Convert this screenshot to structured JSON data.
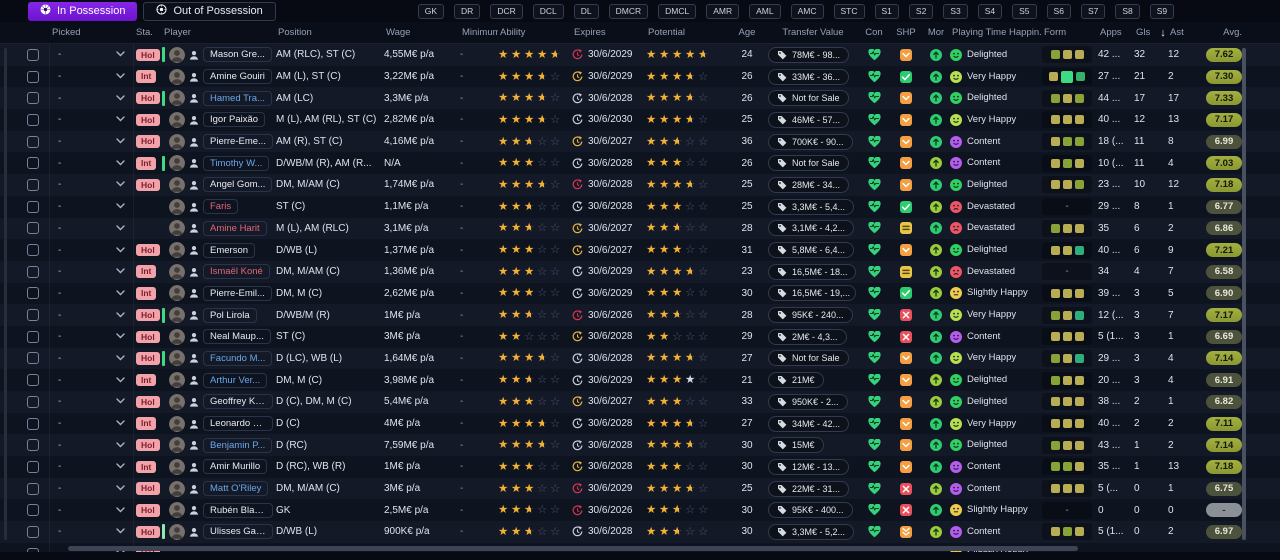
{
  "tabs": [
    {
      "label": "In Possession",
      "active": true
    },
    {
      "label": "Out of Possession",
      "active": false
    }
  ],
  "position_filters": [
    "GK",
    "DR",
    "DCR",
    "DCL",
    "DL",
    "DMCR",
    "DMCL",
    "AMR",
    "AML",
    "AMC",
    "STC",
    "S1",
    "S2",
    "S3",
    "S4",
    "S5",
    "S6",
    "S7",
    "S8",
    "S9"
  ],
  "columns": [
    "",
    "Picked",
    "Sta.",
    "Player",
    "Position",
    "Wage",
    "Minimum...",
    "Ability",
    "Expires",
    "Potential",
    "Age",
    "Transfer Value",
    "Con",
    "SHP",
    "Mor",
    "Playing Time Happin...",
    "Form",
    "Apps",
    "Gls",
    "Ast",
    "Avg."
  ],
  "sort": {
    "column": "Gls",
    "direction": "desc"
  },
  "colors": {
    "accent_purple": "#7a1fe0",
    "badge_pink": "#f2a3aa",
    "star_gold": "#f2b135",
    "heart_green": "#34d27b",
    "clock_red": "#d7344e",
    "clock_yellow": "#e3b341",
    "clock_white": "#c8cdd9",
    "mood_delighted": "#2fd160",
    "mood_veryhappy": "#b6e14e",
    "mood_content": "#b65cf0",
    "mood_devastated": "#ee5566",
    "mood_slightly": "#eecb4e"
  },
  "rows": [
    {
      "picked": "-",
      "sta": "Hol",
      "bar": "green",
      "name": "Mason Gre...",
      "name_color": "white",
      "position": "AM (RLC), ST (C)",
      "wage": "4,55M€ p/a",
      "min_fee": "-",
      "ability": 4.5,
      "expires": "30/6/2029",
      "expires_color": "red",
      "potential": 4.5,
      "age": "24",
      "value": "78M€ - 98...",
      "shp": "down",
      "mor": "green",
      "happiness": "Delighted",
      "mood": "delighted",
      "form": [
        "olive",
        "khaki",
        "khaki"
      ],
      "apps": "42 ...",
      "gls": "32",
      "ast": "12",
      "avg": "7.62"
    },
    {
      "picked": "-",
      "sta": "Int",
      "bar": null,
      "name": "Amine Gouiri",
      "name_color": "white",
      "position": "AM (L), ST (C)",
      "wage": "3,22M€ p/a",
      "min_fee": "-",
      "ability": 3.5,
      "expires": "30/6/2029",
      "expires_color": "yellow",
      "potential": 3.5,
      "age": "26",
      "value": "33M€ - 36...",
      "shp": "check",
      "mor": "green",
      "happiness": "Very Happy",
      "mood": "veryhappy",
      "form": [
        "khaki",
        "bright",
        "green"
      ],
      "form_big": 1,
      "apps": "27 ...",
      "gls": "21",
      "ast": "2",
      "avg": "7.30"
    },
    {
      "picked": "-",
      "sta": "Hol",
      "bar": "green",
      "name": "Hamed Tra...",
      "name_color": "blue",
      "position": "AM (LC)",
      "wage": "3,3M€ p/a",
      "min_fee": "-",
      "ability": 3.5,
      "expires": "30/6/2028",
      "expires_color": "white",
      "potential": 3.5,
      "age": "26",
      "value": "Not for Sale",
      "shp": "down",
      "mor": "green",
      "happiness": "Delighted",
      "mood": "delighted",
      "form": [
        "olive",
        "khaki",
        "olive"
      ],
      "apps": "44 ...",
      "gls": "17",
      "ast": "17",
      "avg": "7.33"
    },
    {
      "picked": "-",
      "sta": "Hol",
      "bar": null,
      "name": "Igor Paixão",
      "name_color": "white",
      "position": "M (L), AM (RL), ST (C)",
      "wage": "2,82M€ p/a",
      "min_fee": "-",
      "ability": 3.5,
      "expires": "30/6/2030",
      "expires_color": "white",
      "potential": 3.5,
      "age": "25",
      "value": "46M€ - 57...",
      "shp": "down",
      "mor": "green",
      "happiness": "Very Happy",
      "mood": "veryhappy",
      "form": [
        "khaki",
        "khaki",
        "khaki"
      ],
      "apps": "40 ...",
      "gls": "12",
      "ast": "13",
      "avg": "7.17"
    },
    {
      "picked": "-",
      "sta": "Hol",
      "bar": null,
      "name": "Pierre-Eme...",
      "name_color": "white",
      "position": "AM (R), ST (C)",
      "wage": "4,16M€ p/a",
      "min_fee": "-",
      "ability": 2.5,
      "expires": "30/6/2027",
      "expires_color": "yellow",
      "potential": 2.5,
      "age": "36",
      "value": "700K€ - 90...",
      "shp": "down",
      "mor": "green",
      "happiness": "Content",
      "mood": "content",
      "form": [
        "khaki",
        "olive",
        "olive"
      ],
      "apps": "18 (...",
      "gls": "11",
      "ast": "8",
      "avg": "6.99"
    },
    {
      "picked": "-",
      "sta": "Int",
      "bar": "green",
      "name": "Timothy W...",
      "name_color": "blue",
      "position": "D/WB/M (R), AM (R...",
      "wage": "N/A",
      "min_fee": "-",
      "ability": 3,
      "expires": "30/6/2028",
      "expires_color": "white",
      "potential": 3,
      "age": "26",
      "value": "Not for Sale",
      "shp": "down",
      "mor": "lime",
      "happiness": "Content",
      "mood": "content",
      "form": [
        "khaki",
        "olive",
        "khaki"
      ],
      "apps": "10 (...",
      "gls": "11",
      "ast": "4",
      "avg": "7.03"
    },
    {
      "picked": "-",
      "sta": "Hol",
      "bar": null,
      "name": "Angel Gom...",
      "name_color": "white",
      "position": "DM, M/AM (C)",
      "wage": "1,74M€ p/a",
      "min_fee": "-",
      "ability": 3.5,
      "expires": "30/6/2028",
      "expires_color": "red",
      "potential": 3.5,
      "age": "25",
      "value": "28M€ - 34...",
      "shp": "down",
      "mor": "green",
      "happiness": "Delighted",
      "mood": "delighted",
      "form": [
        "khaki",
        "khaki",
        "olive"
      ],
      "apps": "23 ...",
      "gls": "10",
      "ast": "12",
      "avg": "7.18"
    },
    {
      "picked": "-",
      "sta": null,
      "bar": null,
      "name": "Faris",
      "name_color": "red",
      "position": "ST (C)",
      "wage": "1,1M€ p/a",
      "min_fee": "-",
      "ability": 2.5,
      "expires": "30/6/2028",
      "expires_color": "white",
      "potential": 3,
      "age": "25",
      "value": "3,3M€ - 5,4...",
      "shp": "check",
      "mor": "lime",
      "happiness": "Devastated",
      "mood": "devastated",
      "form": "-",
      "apps": "29 ...",
      "gls": "8",
      "ast": "1",
      "avg": "6.77"
    },
    {
      "picked": "-",
      "sta": null,
      "bar": null,
      "name": "Amine Harit",
      "name_color": "red",
      "position": "M (L), AM (RLC)",
      "wage": "3,1M€ p/a",
      "min_fee": "-",
      "ability": 2.5,
      "expires": "30/6/2027",
      "expires_color": "yellow",
      "potential": 2.5,
      "age": "28",
      "value": "3,1M€ - 4,2...",
      "shp": "equal",
      "mor": "green",
      "happiness": "Devastated",
      "mood": "devastated",
      "form": [
        "olive",
        "khaki",
        "khaki"
      ],
      "apps": "35",
      "gls": "6",
      "ast": "2",
      "avg": "6.86"
    },
    {
      "picked": "-",
      "sta": "Hol",
      "bar": null,
      "name": "Emerson",
      "name_color": "white",
      "position": "D/WB (L)",
      "wage": "1,37M€ p/a",
      "min_fee": "-",
      "ability": 3,
      "expires": "30/6/2027",
      "expires_color": "yellow",
      "potential": 3,
      "age": "31",
      "value": "5,8M€ - 6,4...",
      "shp": "down",
      "mor": "lime",
      "happiness": "Delighted",
      "mood": "delighted",
      "form": [
        "khaki",
        "khaki",
        "teal"
      ],
      "apps": "40 ...",
      "gls": "6",
      "ast": "9",
      "avg": "7.21"
    },
    {
      "picked": "-",
      "sta": "Int",
      "bar": null,
      "name": "Ismaël Koné",
      "name_color": "red",
      "position": "DM, M/AM (C)",
      "wage": "1,36M€ p/a",
      "min_fee": "-",
      "ability": 3,
      "expires": "30/6/2029",
      "expires_color": "white",
      "potential": 3.5,
      "age": "23",
      "value": "16,5M€ - 18...",
      "shp": "equal",
      "mor": "lime",
      "happiness": "Devastated",
      "mood": "devastated",
      "form": "-",
      "apps": "34",
      "gls": "4",
      "ast": "7",
      "avg": "6.58"
    },
    {
      "picked": "-",
      "sta": "Int",
      "bar": null,
      "name": "Pierre-Emil...",
      "name_color": "white",
      "position": "DM, M (C)",
      "wage": "2,62M€ p/a",
      "min_fee": "-",
      "ability": 3,
      "expires": "30/6/2029",
      "expires_color": "white",
      "potential": 3,
      "age": "30",
      "value": "16,5M€ - 19,...",
      "shp": "check",
      "mor": "lime",
      "happiness": "Slightly Happy",
      "mood": "slightly",
      "form": [
        "khaki",
        "khaki",
        "khaki"
      ],
      "apps": "39 ...",
      "gls": "3",
      "ast": "5",
      "avg": "6.90"
    },
    {
      "picked": "-",
      "sta": "Hol",
      "bar": "green",
      "name": "Pol Lirola",
      "name_color": "white",
      "position": "D/WB/M (R)",
      "wage": "1M€ p/a",
      "min_fee": "-",
      "ability": 2.5,
      "expires": "30/6/2026",
      "expires_color": "red",
      "potential": 2.5,
      "age": "28",
      "value": "95K€ - 240...",
      "shp": "x",
      "mor": "green",
      "happiness": "Very Happy",
      "mood": "veryhappy",
      "form": [
        "olive",
        "khaki",
        "teal"
      ],
      "apps": "12 (...",
      "gls": "3",
      "ast": "7",
      "avg": "7.17"
    },
    {
      "picked": "-",
      "sta": "Hol",
      "bar": null,
      "name": "Neal Maup...",
      "name_color": "white",
      "position": "ST (C)",
      "wage": "3M€ p/a",
      "min_fee": "-",
      "ability": 2,
      "expires": "30/6/2028",
      "expires_color": "yellow",
      "potential": 2,
      "age": "29",
      "value": "2M€ - 4,3...",
      "shp": "x",
      "mor": "green",
      "happiness": "Content",
      "mood": "content",
      "form": [
        "khaki",
        "khaki",
        "khaki"
      ],
      "apps": "5 (1...",
      "gls": "3",
      "ast": "1",
      "avg": "6.69"
    },
    {
      "picked": "-",
      "sta": "Hol",
      "bar": "green",
      "name": "Facundo M...",
      "name_color": "blue",
      "position": "D (LC), WB (L)",
      "wage": "1,64M€ p/a",
      "min_fee": "-",
      "ability": 3.5,
      "expires": "30/6/2028",
      "expires_color": "white",
      "potential": 3.5,
      "age": "27",
      "value": "Not for Sale",
      "shp": "down",
      "mor": "green",
      "happiness": "Very Happy",
      "mood": "veryhappy",
      "form": [
        "olive",
        "khaki",
        "teal"
      ],
      "apps": "29 ...",
      "gls": "3",
      "ast": "4",
      "avg": "7.14"
    },
    {
      "picked": "-",
      "sta": "Int",
      "bar": null,
      "name": "Arthur Ver...",
      "name_color": "blue",
      "position": "DM, M (C)",
      "wage": "3,98M€ p/a",
      "min_fee": "-",
      "ability": 2.5,
      "expires": "30/6/2029",
      "expires_color": "white",
      "potential": 4,
      "potential_silver": true,
      "age": "21",
      "value": "21M€",
      "shp": "down",
      "mor": "lime",
      "happiness": "Delighted",
      "mood": "delighted",
      "form": [
        "olive",
        "khaki",
        "khaki"
      ],
      "apps": "20 ...",
      "gls": "3",
      "ast": "4",
      "avg": "6.91"
    },
    {
      "picked": "-",
      "sta": "Hol",
      "bar": null,
      "name": "Geoffrey Ko...",
      "name_color": "white",
      "position": "D (C), DM, M (C)",
      "wage": "5,4M€ p/a",
      "min_fee": "-",
      "ability": 3,
      "expires": "30/6/2027",
      "expires_color": "yellow",
      "potential": 3,
      "age": "33",
      "value": "950K€ - 2...",
      "shp": "down",
      "mor": "lime",
      "happiness": "Delighted",
      "mood": "delighted",
      "form": [
        "khaki",
        "khaki",
        "khaki"
      ],
      "apps": "38 ...",
      "gls": "2",
      "ast": "1",
      "avg": "6.82"
    },
    {
      "picked": "-",
      "sta": "Int",
      "bar": null,
      "name": "Leonardo B...",
      "name_color": "white",
      "position": "D (C)",
      "wage": "4M€ p/a",
      "min_fee": "-",
      "ability": 3.5,
      "expires": "30/6/2028",
      "expires_color": "white",
      "potential": 3.5,
      "age": "27",
      "value": "34M€ - 42...",
      "shp": "down",
      "mor": "green",
      "happiness": "Very Happy",
      "mood": "veryhappy",
      "form": [
        "khaki",
        "khaki",
        "khaki"
      ],
      "apps": "40 ...",
      "gls": "2",
      "ast": "2",
      "avg": "7.11"
    },
    {
      "picked": "-",
      "sta": "Hol",
      "bar": null,
      "name": "Benjamin P...",
      "name_color": "blue",
      "position": "D (RC)",
      "wage": "7,59M€ p/a",
      "min_fee": "-",
      "ability": 3.5,
      "expires": "30/6/2028",
      "expires_color": "white",
      "potential": 3.5,
      "age": "30",
      "value": "15M€",
      "shp": "down",
      "mor": "green",
      "happiness": "Delighted",
      "mood": "delighted",
      "form": [
        "olive",
        "khaki",
        "khaki"
      ],
      "apps": "43 ...",
      "gls": "1",
      "ast": "2",
      "avg": "7.14"
    },
    {
      "picked": "-",
      "sta": "Int",
      "bar": null,
      "name": "Amir Murillo",
      "name_color": "white",
      "position": "D (RC), WB (R)",
      "wage": "1M€ p/a",
      "min_fee": "-",
      "ability": 3,
      "expires": "30/6/2028",
      "expires_color": "yellow",
      "potential": 3,
      "age": "30",
      "value": "12M€ - 13...",
      "shp": "down",
      "mor": "green",
      "happiness": "Content",
      "mood": "content",
      "form": [
        "olive",
        "olive",
        "khaki"
      ],
      "apps": "35 ...",
      "gls": "1",
      "ast": "13",
      "avg": "7.18"
    },
    {
      "picked": "-",
      "sta": "Hol",
      "bar": null,
      "name": "Matt O'Riley",
      "name_color": "blue",
      "position": "DM, M/AM (C)",
      "wage": "3M€ p/a",
      "min_fee": "-",
      "ability": 3,
      "expires": "30/6/2029",
      "expires_color": "red",
      "potential": 3.5,
      "age": "25",
      "value": "22M€ - 31...",
      "shp": "x",
      "mor": "lime",
      "happiness": "Content",
      "mood": "content",
      "form": [
        "khaki",
        "khaki",
        "khaki"
      ],
      "apps": "5 (...",
      "gls": "0",
      "ast": "1",
      "avg": "6.75"
    },
    {
      "picked": "-",
      "sta": "Hol",
      "bar": null,
      "name": "Rubén Blan...",
      "name_color": "white",
      "position": "GK",
      "wage": "2,5M€ p/a",
      "min_fee": "-",
      "ability": 2.5,
      "expires": "30/6/2026",
      "expires_color": "red",
      "potential": 2.5,
      "age": "30",
      "value": "95K€ - 400...",
      "shp": "x",
      "mor": "green",
      "happiness": "Slightly Happy",
      "mood": "slightly",
      "form": "-",
      "apps": "0",
      "gls": "0",
      "ast": "0",
      "avg": "-"
    },
    {
      "picked": "-",
      "sta": "Hol",
      "bar": "mint",
      "name": "Ulisses Gar...",
      "name_color": "white",
      "position": "D/WB (L)",
      "wage": "900K€ p/a",
      "min_fee": "-",
      "ability": 2.5,
      "expires": "30/6/2028",
      "expires_color": "white",
      "potential": 2.5,
      "age": "30",
      "value": "3,3M€ - 5,2...",
      "shp": "down2",
      "mor": "lime",
      "happiness": "Content",
      "mood": "content",
      "form": [
        "khaki",
        "olive",
        "khaki"
      ],
      "apps": "5 (1...",
      "gls": "0",
      "ast": "2",
      "avg": "6.97"
    },
    {
      "partial": true,
      "picked": "-",
      "sta": "Hol",
      "happiness": "Slightly Happy",
      "mood": "slightly"
    }
  ]
}
